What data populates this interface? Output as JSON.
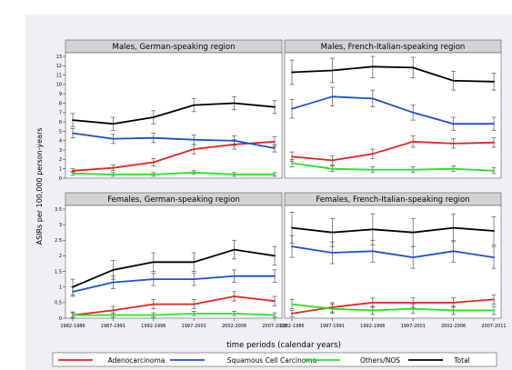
{
  "chart_data": {
    "type": "line",
    "xlabel": "time periods (calendar years)",
    "ylabel": "ASIRs per 100,000 person-years",
    "categories": [
      "1982-1986",
      "1987-1991",
      "1992-1996",
      "1997-2001",
      "2002-2006",
      "2007-2011"
    ],
    "legend": {
      "position": "bottom",
      "entries": [
        {
          "label": "Adenocarcinoma",
          "color": "#e8211c"
        },
        {
          "label": "Squamous Cell Carcinoma",
          "color": "#1a4fd6"
        },
        {
          "label": "Others/NOS",
          "color": "#1ee61e"
        },
        {
          "label": "Total",
          "color": "#000000"
        }
      ]
    },
    "panels": [
      {
        "title": "Males, German-speaking region",
        "ylim": [
          0,
          13
        ],
        "yticks": [
          0,
          1,
          2,
          3,
          4,
          5,
          6,
          7,
          8,
          9,
          10,
          11,
          12,
          13
        ],
        "series": [
          {
            "name": "Adenocarcinoma",
            "values": [
              0.8,
              1.1,
              1.7,
              3.1,
              3.6,
              3.9
            ],
            "lower": [
              0.6,
              0.8,
              1.3,
              2.6,
              3.1,
              3.4
            ],
            "upper": [
              1.0,
              1.4,
              2.1,
              3.6,
              4.1,
              4.4
            ]
          },
          {
            "name": "Squamous Cell Carcinoma",
            "values": [
              4.8,
              4.2,
              4.3,
              4.1,
              4.0,
              3.2
            ],
            "lower": [
              4.3,
              3.7,
              3.8,
              3.6,
              3.5,
              2.8
            ],
            "upper": [
              5.3,
              4.7,
              4.8,
              4.6,
              4.5,
              3.6
            ]
          },
          {
            "name": "Others/NOS",
            "values": [
              0.5,
              0.4,
              0.4,
              0.6,
              0.4,
              0.4
            ],
            "lower": [
              0.3,
              0.2,
              0.2,
              0.4,
              0.2,
              0.2
            ],
            "upper": [
              0.7,
              0.6,
              0.6,
              0.8,
              0.6,
              0.6
            ]
          },
          {
            "name": "Total",
            "values": [
              6.2,
              5.8,
              6.5,
              7.8,
              8.0,
              7.6
            ],
            "lower": [
              5.5,
              5.1,
              5.8,
              7.1,
              7.3,
              6.9
            ],
            "upper": [
              6.9,
              6.5,
              7.2,
              8.5,
              8.7,
              8.3
            ]
          }
        ]
      },
      {
        "title": "Males, French-Italian-speaking region",
        "ylim": [
          0,
          13
        ],
        "yticks": [
          0,
          1,
          2,
          3,
          4,
          5,
          6,
          7,
          8,
          9,
          10,
          11,
          12,
          13
        ],
        "series": [
          {
            "name": "Adenocarcinoma",
            "values": [
              2.3,
              1.9,
              2.6,
              3.9,
              3.7,
              3.8
            ],
            "lower": [
              1.8,
              1.4,
              2.1,
              3.3,
              3.2,
              3.3
            ],
            "upper": [
              2.8,
              2.4,
              3.1,
              4.5,
              4.2,
              4.3
            ]
          },
          {
            "name": "Squamous Cell Carcinoma",
            "values": [
              7.4,
              8.7,
              8.5,
              7.0,
              5.8,
              5.8
            ],
            "lower": [
              6.4,
              7.7,
              7.6,
              6.2,
              5.1,
              5.1
            ],
            "upper": [
              8.4,
              9.7,
              9.4,
              7.8,
              6.5,
              6.5
            ]
          },
          {
            "name": "Others/NOS",
            "values": [
              1.6,
              1.0,
              0.9,
              0.9,
              1.0,
              0.8
            ],
            "lower": [
              1.2,
              0.7,
              0.6,
              0.6,
              0.7,
              0.5
            ],
            "upper": [
              2.0,
              1.3,
              1.2,
              1.2,
              1.3,
              1.1
            ]
          },
          {
            "name": "Total",
            "values": [
              11.3,
              11.5,
              11.9,
              11.8,
              10.4,
              10.3
            ],
            "lower": [
              10.0,
              10.2,
              10.7,
              10.7,
              9.4,
              9.4
            ],
            "upper": [
              12.6,
              12.8,
              13.1,
              12.9,
              11.4,
              11.2
            ]
          }
        ]
      },
      {
        "title": "Females, German-speaking region",
        "ylim": [
          0,
          3.5
        ],
        "yticks": [
          0,
          0.5,
          1,
          1.5,
          2,
          2.5,
          3,
          3.5
        ],
        "series": [
          {
            "name": "Adenocarcinoma",
            "values": [
              0.1,
              0.25,
              0.45,
              0.45,
              0.7,
              0.55
            ],
            "lower": [
              0.0,
              0.12,
              0.3,
              0.3,
              0.55,
              0.4
            ],
            "upper": [
              0.2,
              0.38,
              0.6,
              0.6,
              0.85,
              0.7
            ]
          },
          {
            "name": "Squamous Cell Carcinoma",
            "values": [
              0.85,
              1.15,
              1.25,
              1.25,
              1.35,
              1.35
            ],
            "lower": [
              0.7,
              0.95,
              1.05,
              1.05,
              1.15,
              1.15
            ],
            "upper": [
              1.0,
              1.35,
              1.45,
              1.45,
              1.55,
              1.55
            ]
          },
          {
            "name": "Others/NOS",
            "values": [
              0.1,
              0.1,
              0.1,
              0.15,
              0.15,
              0.1
            ],
            "lower": [
              0.03,
              0.03,
              0.03,
              0.08,
              0.08,
              0.03
            ],
            "upper": [
              0.17,
              0.17,
              0.17,
              0.22,
              0.22,
              0.17
            ]
          },
          {
            "name": "Total",
            "values": [
              1.0,
              1.55,
              1.8,
              1.8,
              2.2,
              2.0
            ],
            "lower": [
              0.75,
              1.25,
              1.5,
              1.5,
              1.9,
              1.7
            ],
            "upper": [
              1.25,
              1.85,
              2.1,
              2.1,
              2.5,
              2.3
            ]
          }
        ]
      },
      {
        "title": "Females, French-Italian-speaking region",
        "ylim": [
          0,
          3.5
        ],
        "yticks": [
          0,
          0.5,
          1,
          1.5,
          2,
          2.5,
          3,
          3.5
        ],
        "series": [
          {
            "name": "Adenocarcinoma",
            "values": [
              0.15,
              0.35,
              0.5,
              0.5,
              0.5,
              0.6
            ],
            "lower": [
              0.05,
              0.2,
              0.35,
              0.35,
              0.35,
              0.45
            ],
            "upper": [
              0.25,
              0.5,
              0.65,
              0.65,
              0.65,
              0.75
            ]
          },
          {
            "name": "Squamous Cell Carcinoma",
            "values": [
              2.3,
              2.1,
              2.15,
              1.95,
              2.15,
              1.95
            ],
            "lower": [
              1.95,
              1.75,
              1.8,
              1.6,
              1.8,
              1.6
            ],
            "upper": [
              2.65,
              2.45,
              2.5,
              2.3,
              2.5,
              2.3
            ]
          },
          {
            "name": "Others/NOS",
            "values": [
              0.45,
              0.3,
              0.25,
              0.3,
              0.25,
              0.25
            ],
            "lower": [
              0.3,
              0.15,
              0.12,
              0.15,
              0.12,
              0.12
            ],
            "upper": [
              0.6,
              0.45,
              0.38,
              0.45,
              0.38,
              0.38
            ]
          },
          {
            "name": "Total",
            "values": [
              2.9,
              2.75,
              2.85,
              2.75,
              2.9,
              2.8
            ],
            "lower": [
              2.4,
              2.3,
              2.35,
              2.3,
              2.45,
              2.35
            ],
            "upper": [
              3.4,
              3.2,
              3.35,
              3.2,
              3.35,
              3.25
            ]
          }
        ]
      }
    ]
  }
}
